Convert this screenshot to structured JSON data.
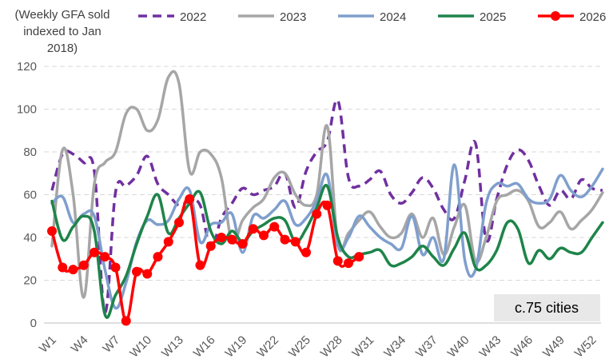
{
  "chart_data": {
    "type": "line",
    "ylabel_lines": [
      "(Weekly GFA sold",
      "indexed to Jan",
      "2018)"
    ],
    "ylim": [
      0,
      120
    ],
    "yticks": [
      0,
      20,
      40,
      60,
      80,
      100,
      120
    ],
    "x_tick_labels": [
      "W1",
      "W4",
      "W7",
      "W10",
      "W13",
      "W16",
      "W19",
      "W22",
      "W25",
      "W28",
      "W31",
      "W34",
      "W37",
      "W40",
      "W43",
      "W46",
      "W49",
      "W52"
    ],
    "grid": "horizontal dashed",
    "legend_position": "top",
    "annotation": "c.75 cities",
    "series": [
      {
        "name": "2022",
        "color": "#7030A0",
        "style": "dashed",
        "markers": false,
        "values": [
          62,
          79,
          79,
          75,
          71,
          5,
          61,
          64,
          69,
          78,
          65,
          60,
          55,
          57,
          55,
          35,
          49,
          56,
          63,
          60,
          62,
          64,
          70,
          54,
          71,
          80,
          85,
          104,
          68,
          64,
          67,
          71,
          60,
          56,
          61,
          68,
          63,
          53,
          49,
          67,
          84,
          39,
          58,
          74,
          81,
          76,
          64,
          55,
          62,
          58,
          67,
          63,
          62
        ]
      },
      {
        "name": "2023",
        "color": "#A6A6A6",
        "style": "solid",
        "markers": false,
        "values": [
          36,
          81,
          60,
          12,
          65,
          75,
          80,
          98,
          100,
          90,
          95,
          115,
          112,
          71,
          80,
          79,
          68,
          38,
          48,
          54,
          58,
          68,
          70,
          60,
          55,
          60,
          92,
          37,
          42,
          48,
          52,
          45,
          40,
          42,
          51,
          40,
          49,
          32,
          45,
          55,
          29,
          40,
          57,
          60,
          62,
          57,
          45,
          47,
          52,
          44,
          48,
          53,
          61
        ]
      },
      {
        "name": "2024",
        "color": "#7F9FCD",
        "style": "solid",
        "markers": false,
        "values": [
          56,
          59,
          47,
          51,
          50,
          25,
          7,
          19,
          38,
          48,
          46,
          48,
          58,
          62,
          38,
          46,
          47,
          51,
          33,
          50,
          49,
          53,
          57,
          46,
          49,
          57,
          69,
          36,
          40,
          50,
          45,
          40,
          37,
          35,
          50,
          32,
          40,
          30,
          74,
          29,
          25,
          56,
          65,
          64,
          65,
          58,
          56,
          58,
          69,
          62,
          59,
          64,
          72
        ]
      },
      {
        "name": "2025",
        "color": "#1E8449",
        "style": "solid",
        "markers": false,
        "values": [
          57,
          39,
          45,
          50,
          43,
          4,
          13,
          22,
          37,
          50,
          60,
          42,
          49,
          56,
          61,
          43,
          37,
          43,
          38,
          43,
          46,
          49,
          48,
          38,
          44,
          54,
          64,
          40,
          31,
          32,
          33,
          34,
          27,
          28,
          31,
          36,
          31,
          27,
          35,
          42,
          26,
          27,
          34,
          47,
          44,
          28,
          34,
          30,
          35,
          33,
          33,
          40,
          47
        ]
      },
      {
        "name": "2026",
        "color": "#FF0000",
        "style": "solid",
        "markers": true,
        "values": [
          43,
          26,
          25,
          27,
          33,
          31,
          26,
          1,
          24,
          23,
          31,
          38,
          47,
          58,
          27,
          36,
          40,
          39,
          37,
          44,
          41,
          45,
          39,
          38,
          33,
          51,
          55,
          29,
          28,
          31
        ]
      }
    ]
  }
}
